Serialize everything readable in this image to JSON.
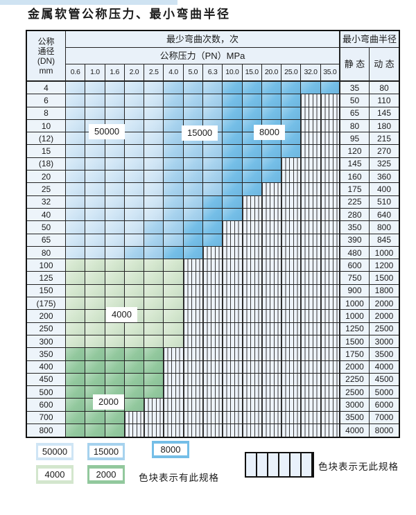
{
  "page": {
    "title": "金属软管公称压力、最小弯曲半径"
  },
  "colors": {
    "b50000": "#cfe5f5",
    "b15000": "#a6d2ee",
    "b8000": "#74bee7",
    "b4000": "#d3e6cd",
    "b2000": "#92c89d",
    "hatch_bg": "#edf3fa",
    "header_bg": "#e9f1f9",
    "grid": "#222222",
    "top_strip": "#cfe3f2"
  },
  "table": {
    "dn_header_lines": [
      "公称",
      "通径",
      "(DN)",
      "mm"
    ],
    "bend_times_header": "最少弯曲次数，次",
    "pressure_header": "公称压力（PN）MPa",
    "radius_header": "最小弯曲半径",
    "static_header": "静 态",
    "dynamic_header": "动 态",
    "pressures": [
      "0.6",
      "1.0",
      "1.6",
      "2.0",
      "2.5",
      "4.0",
      "5.0",
      "6.3",
      "10.0",
      "15.0",
      "20.0",
      "25.0",
      "32.0",
      "35.0"
    ],
    "band_keys": [
      "b50000",
      "b15000",
      "b8000",
      "b4000",
      "b2000",
      "none"
    ],
    "rows": [
      {
        "dn": "4",
        "bands": [
          5,
          3,
          6,
          0,
          0,
          0
        ],
        "static": "35",
        "dynamic": "80"
      },
      {
        "dn": "6",
        "bands": [
          5,
          3,
          4,
          0,
          0,
          2
        ],
        "static": "50",
        "dynamic": "110"
      },
      {
        "dn": "8",
        "bands": [
          5,
          3,
          4,
          0,
          0,
          2
        ],
        "static": "65",
        "dynamic": "145"
      },
      {
        "dn": "10",
        "bands": [
          5,
          3,
          4,
          0,
          0,
          2
        ],
        "static": "80",
        "dynamic": "180"
      },
      {
        "dn": "(12)",
        "bands": [
          5,
          3,
          4,
          0,
          0,
          2
        ],
        "static": "95",
        "dynamic": "215"
      },
      {
        "dn": "15",
        "bands": [
          5,
          3,
          4,
          0,
          0,
          2
        ],
        "static": "120",
        "dynamic": "270"
      },
      {
        "dn": "(18)",
        "bands": [
          5,
          3,
          3,
          0,
          0,
          3
        ],
        "static": "145",
        "dynamic": "325"
      },
      {
        "dn": "20",
        "bands": [
          5,
          3,
          3,
          0,
          0,
          3
        ],
        "static": "160",
        "dynamic": "360"
      },
      {
        "dn": "25",
        "bands": [
          5,
          3,
          2,
          0,
          0,
          4
        ],
        "static": "175",
        "dynamic": "400"
      },
      {
        "dn": "32",
        "bands": [
          5,
          2,
          2,
          0,
          0,
          5
        ],
        "static": "225",
        "dynamic": "510"
      },
      {
        "dn": "40",
        "bands": [
          5,
          2,
          2,
          0,
          0,
          5
        ],
        "static": "280",
        "dynamic": "640"
      },
      {
        "dn": "50",
        "bands": [
          4,
          2,
          2,
          0,
          0,
          6
        ],
        "static": "350",
        "dynamic": "800"
      },
      {
        "dn": "65",
        "bands": [
          4,
          2,
          2,
          0,
          0,
          6
        ],
        "static": "390",
        "dynamic": "845"
      },
      {
        "dn": "80",
        "bands": [
          3,
          2,
          2,
          0,
          0,
          7
        ],
        "static": "480",
        "dynamic": "1000"
      },
      {
        "dn": "100",
        "bands": [
          0,
          0,
          0,
          6,
          0,
          8
        ],
        "static": "600",
        "dynamic": "1200"
      },
      {
        "dn": "125",
        "bands": [
          0,
          0,
          0,
          6,
          0,
          8
        ],
        "static": "750",
        "dynamic": "1500"
      },
      {
        "dn": "150",
        "bands": [
          0,
          0,
          0,
          6,
          0,
          8
        ],
        "static": "900",
        "dynamic": "1800"
      },
      {
        "dn": "(175)",
        "bands": [
          0,
          0,
          0,
          6,
          0,
          8
        ],
        "static": "1000",
        "dynamic": "2000"
      },
      {
        "dn": "200",
        "bands": [
          0,
          0,
          0,
          6,
          0,
          8
        ],
        "static": "1000",
        "dynamic": "2000"
      },
      {
        "dn": "250",
        "bands": [
          0,
          0,
          0,
          6,
          0,
          8
        ],
        "static": "1250",
        "dynamic": "2500"
      },
      {
        "dn": "300",
        "bands": [
          0,
          0,
          0,
          6,
          0,
          8
        ],
        "static": "1500",
        "dynamic": "3000"
      },
      {
        "dn": "350",
        "bands": [
          0,
          0,
          0,
          0,
          5,
          9
        ],
        "static": "1750",
        "dynamic": "3500"
      },
      {
        "dn": "400",
        "bands": [
          0,
          0,
          0,
          0,
          5,
          9
        ],
        "static": "2000",
        "dynamic": "4000"
      },
      {
        "dn": "450",
        "bands": [
          0,
          0,
          0,
          0,
          5,
          9
        ],
        "static": "2250",
        "dynamic": "4500"
      },
      {
        "dn": "500",
        "bands": [
          0,
          0,
          0,
          0,
          5,
          9
        ],
        "static": "2500",
        "dynamic": "5000"
      },
      {
        "dn": "600",
        "bands": [
          0,
          0,
          0,
          0,
          4,
          10
        ],
        "static": "3000",
        "dynamic": "6000"
      },
      {
        "dn": "700",
        "bands": [
          0,
          0,
          0,
          0,
          3,
          11
        ],
        "static": "3500",
        "dynamic": "7000"
      },
      {
        "dn": "800",
        "bands": [
          0,
          0,
          0,
          0,
          3,
          11
        ],
        "static": "4000",
        "dynamic": "8000"
      }
    ],
    "region_labels": [
      {
        "text": "50000"
      },
      {
        "text": "15000"
      },
      {
        "text": "8000"
      },
      {
        "text": "4000"
      },
      {
        "text": "2000"
      }
    ]
  },
  "legend": {
    "swatches": [
      {
        "label": "50000",
        "color_key": "b50000"
      },
      {
        "label": "15000",
        "color_key": "b15000"
      },
      {
        "label": "8000",
        "color_key": "b8000"
      },
      {
        "label": "4000",
        "color_key": "b4000"
      },
      {
        "label": "2000",
        "color_key": "b2000"
      }
    ],
    "has_spec_text": "色块表示有此规格",
    "no_spec_text": "色块表示无此规格"
  }
}
